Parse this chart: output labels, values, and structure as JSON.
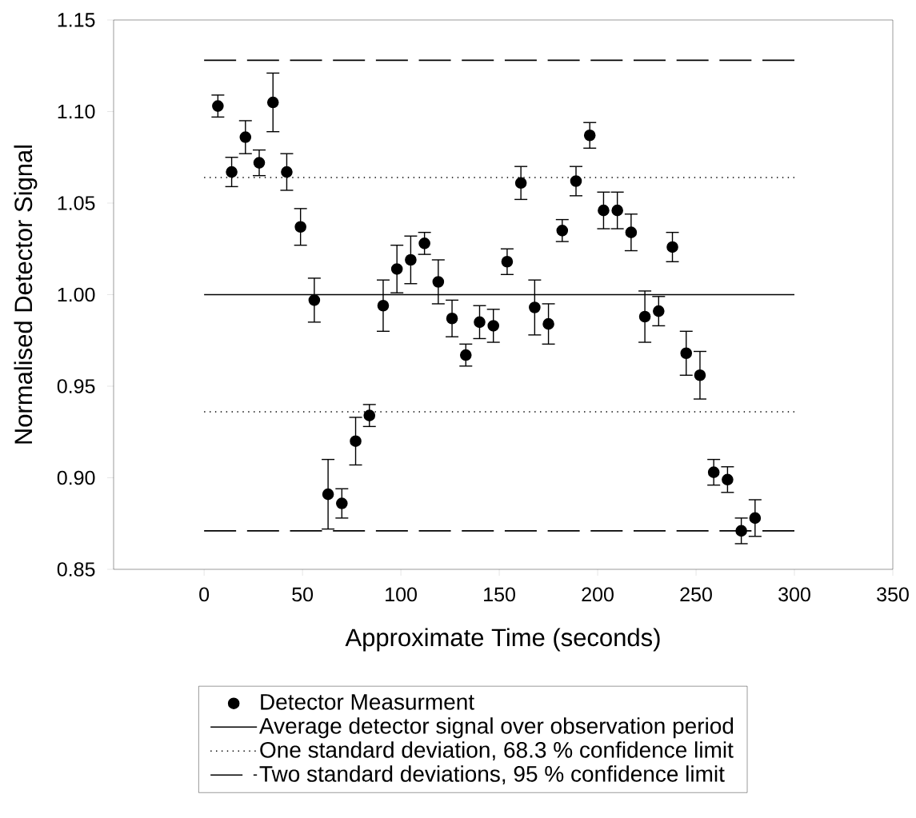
{
  "chart_data": {
    "type": "scatter",
    "xlabel": "Approximate Time (seconds)",
    "ylabel": "Normalised Detector Signal",
    "xlim": [
      -46,
      350
    ],
    "ylim": [
      0.85,
      1.15
    ],
    "xticks": [
      0,
      50,
      100,
      150,
      200,
      250,
      300,
      350
    ],
    "yticks": [
      {
        "value": 0.85,
        "label": "0.85"
      },
      {
        "value": 0.9,
        "label": "0.90"
      },
      {
        "value": 0.95,
        "label": "0.95"
      },
      {
        "value": 1.0,
        "label": "1.00"
      },
      {
        "value": 1.05,
        "label": "1.05"
      },
      {
        "value": 1.1,
        "label": "1.10"
      },
      {
        "value": 1.15,
        "label": "1.15"
      }
    ],
    "legend": "bottom",
    "series": [
      {
        "name": "Detector Measurment",
        "marker": "circle",
        "color": "#000000",
        "x": [
          7,
          14,
          21,
          28,
          35,
          42,
          49,
          56,
          63,
          70,
          77,
          84,
          91,
          98,
          105,
          112,
          119,
          126,
          133,
          140,
          147,
          154,
          161,
          168,
          175,
          182,
          189,
          196,
          203,
          210,
          217,
          224,
          231,
          238,
          245,
          252,
          259,
          266,
          273,
          280
        ],
        "values": [
          1.103,
          1.067,
          1.086,
          1.072,
          1.105,
          1.067,
          1.037,
          0.997,
          0.891,
          0.886,
          0.92,
          0.934,
          0.994,
          1.014,
          1.019,
          1.028,
          1.007,
          0.987,
          0.967,
          0.985,
          0.983,
          1.018,
          1.061,
          0.993,
          0.984,
          1.035,
          1.062,
          1.087,
          1.046,
          1.046,
          1.034,
          0.988,
          0.991,
          1.026,
          0.968,
          0.956,
          0.903,
          0.899,
          0.871,
          0.878
        ],
        "errors": [
          0.006,
          0.008,
          0.009,
          0.007,
          0.016,
          0.01,
          0.01,
          0.012,
          0.019,
          0.008,
          0.013,
          0.006,
          0.014,
          0.013,
          0.013,
          0.006,
          0.012,
          0.01,
          0.006,
          0.009,
          0.009,
          0.007,
          0.009,
          0.015,
          0.011,
          0.006,
          0.008,
          0.007,
          0.01,
          0.01,
          0.01,
          0.014,
          0.008,
          0.008,
          0.012,
          0.013,
          0.007,
          0.007,
          0.007,
          0.01
        ]
      },
      {
        "name": "Average detector signal over observation period",
        "type": "line",
        "marker": "none",
        "line_style": "solid",
        "color": "#000000",
        "x": [
          0,
          300
        ],
        "values": [
          1.0,
          1.0
        ]
      },
      {
        "name": "One standard deviation, 68.3 % confidence limit",
        "type": "line",
        "marker": "none",
        "line_style": "dotted",
        "color": "#000000",
        "x": [
          0,
          300
        ],
        "values": [
          1.064,
          1.064
        ]
      },
      {
        "type": "line",
        "marker": "none",
        "line_style": "dotted",
        "color": "#000000",
        "x": [
          0,
          300
        ],
        "values": [
          0.936,
          0.936
        ]
      },
      {
        "name": "Two standard deviations, 95 % confidence limit",
        "type": "line",
        "marker": "none",
        "line_style": "dashed",
        "color": "#000000",
        "x": [
          0,
          300
        ],
        "values": [
          1.128,
          1.128
        ]
      },
      {
        "type": "line",
        "marker": "none",
        "line_style": "dashed",
        "color": "#000000",
        "x": [
          0,
          300
        ],
        "values": [
          0.871,
          0.871
        ]
      }
    ]
  }
}
